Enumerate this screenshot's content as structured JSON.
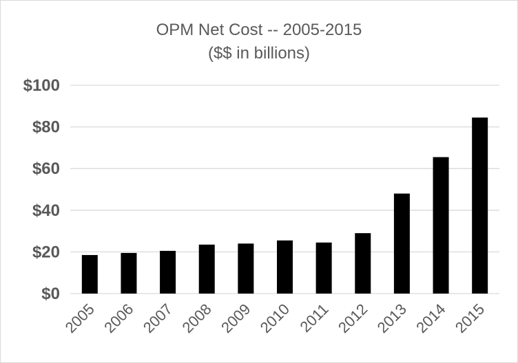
{
  "chart_data": {
    "type": "bar",
    "title": "OPM Net Cost -- 2005-2015",
    "subtitle": "($$ in billions)",
    "xlabel": "",
    "ylabel": "",
    "categories": [
      "2005",
      "2006",
      "2007",
      "2008",
      "2009",
      "2010",
      "2011",
      "2012",
      "2013",
      "2014",
      "2015"
    ],
    "values": [
      18.5,
      19.5,
      20.5,
      23.5,
      24,
      25.5,
      24.5,
      29,
      48,
      65.5,
      84.5
    ],
    "ylim": [
      0,
      100
    ],
    "yticks": [
      0,
      20,
      40,
      60,
      80,
      100
    ],
    "ytick_labels": [
      "$0",
      "$20",
      "$40",
      "$60",
      "$80",
      "$100"
    ],
    "grid": true,
    "legend": "none",
    "colors": {
      "bar": "#000000",
      "grid": "#d9d9d9",
      "text": "#595959"
    }
  }
}
